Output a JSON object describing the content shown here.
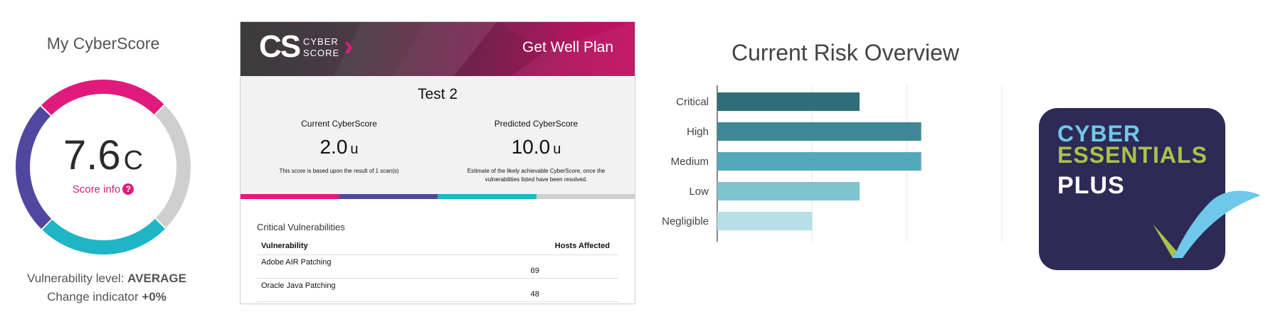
{
  "score_panel": {
    "title": "My CyberScore",
    "score": "7.6",
    "grade": "C",
    "score_info_label": "Score info",
    "score_info_icon": "?",
    "vuln_label": "Vulnerability level:",
    "vuln_value": "AVERAGE",
    "change_label": "Change indicator",
    "change_value": "+0%",
    "gauge_colors": [
      "#e01b7d",
      "#cfcfcf",
      "#1fb5c6",
      "#5047a0"
    ]
  },
  "get_well_plan": {
    "logo_mark": "CS",
    "logo_word1": "CYBER",
    "logo_word2": "SCORE",
    "title": "Get Well Plan",
    "test_name": "Test 2",
    "current": {
      "label": "Current CyberScore",
      "value": "2.0",
      "grade": "u",
      "note": "This score is based upon the result of 1 scan(s)"
    },
    "predicted": {
      "label": "Predicted CyberScore",
      "value": "10.0",
      "grade": "u",
      "note": "Estimate of the likely achievable CyberScore, once the vulnerabilities listed have been resolved."
    },
    "stripe_colors": [
      "#e01b7d",
      "#5047a0",
      "#1fb5c6",
      "#cfcfcf"
    ],
    "critical_title": "Critical Vulnerabilities",
    "table": {
      "headers": [
        "Vulnerability",
        "Hosts Affected"
      ],
      "rows": [
        {
          "vulnerability": "Adobe AIR Patching",
          "hosts": "69"
        },
        {
          "vulnerability": "Oracle Java Patching",
          "hosts": "48"
        }
      ]
    }
  },
  "risk_overview": {
    "title": "Current Risk Overview"
  },
  "chart_data": {
    "type": "bar",
    "orientation": "horizontal",
    "title": "Current Risk Overview",
    "categories": [
      "Critical",
      "High",
      "Medium",
      "Low",
      "Negligible"
    ],
    "values": [
      3,
      4.3,
      4.3,
      3,
      2
    ],
    "colors": [
      "#2f6e78",
      "#3f8895",
      "#51a9ba",
      "#7fc3cf",
      "#b6dfe6"
    ],
    "xlim": [
      0,
      6
    ],
    "grid": true,
    "legend": "none"
  },
  "cyber_essentials": {
    "line1": "CYBER",
    "line2": "ESSENTIALS",
    "line3": "PLUS"
  }
}
